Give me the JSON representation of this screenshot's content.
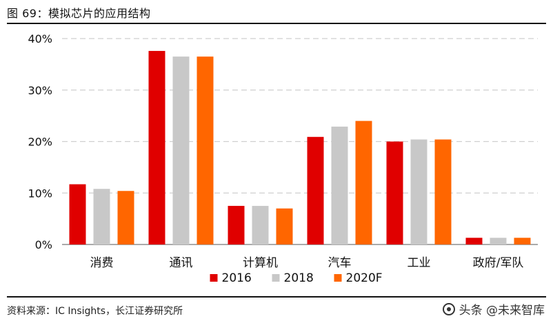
{
  "figure_title": "图 69：模拟芯片的应用结构",
  "source": "资料来源：IC Insights，长江证券研究所",
  "watermark": {
    "text": "头条 @未来智库",
    "icon": "camera-icon"
  },
  "chart_data": {
    "type": "bar",
    "categories": [
      "消费",
      "通讯",
      "计算机",
      "汽车",
      "工业",
      "政府/军队"
    ],
    "series": [
      {
        "name": "2016",
        "color": "#e00000",
        "values": [
          11.7,
          37.6,
          7.5,
          20.9,
          20.0,
          1.3
        ]
      },
      {
        "name": "2018",
        "color": "#c8c8c8",
        "values": [
          10.8,
          36.5,
          7.5,
          22.9,
          20.4,
          1.3
        ]
      },
      {
        "name": "2020F",
        "color": "#ff6600",
        "values": [
          10.4,
          36.5,
          7.0,
          24.0,
          20.4,
          1.3
        ]
      }
    ],
    "ylim": [
      0,
      40
    ],
    "yticks": [
      "0%",
      "10%",
      "20%",
      "30%",
      "40%"
    ],
    "ytick_values": [
      0,
      10,
      20,
      30,
      40
    ],
    "grid": true,
    "legend_position": "bottom-center"
  }
}
